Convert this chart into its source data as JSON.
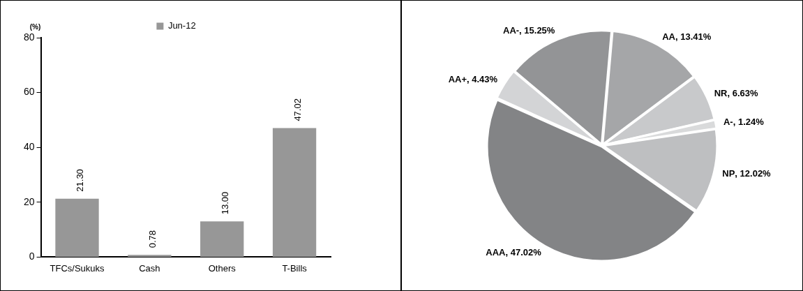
{
  "chart_data": [
    {
      "type": "bar",
      "ylabel": "(%)",
      "categories": [
        "TFCs/Sukuks",
        "Cash",
        "Others",
        "T-Bills"
      ],
      "series": [
        {
          "name": "Jun-12",
          "color": "#979797",
          "values": [
            21.3,
            0.78,
            13.0,
            47.02
          ],
          "value_labels": [
            "21.30",
            "0.78",
            "13.00",
            "47.02"
          ]
        }
      ],
      "ylim": [
        0,
        80
      ],
      "yticks": [
        0,
        20,
        40,
        60,
        80
      ],
      "grid": false,
      "legend": "top"
    },
    {
      "type": "pie",
      "categories": [
        "AA",
        "NR",
        "A-",
        "NP",
        "AAA",
        "AA+",
        "AA-"
      ],
      "values": [
        13.41,
        6.63,
        1.24,
        12.02,
        47.02,
        4.43,
        15.25
      ],
      "colors": [
        "#a5a6a8",
        "#c8c9cb",
        "#d9dadb",
        "#bebfc1",
        "#838486",
        "#d3d4d6",
        "#939496"
      ],
      "value_labels": [
        ", 13.41%",
        ", 6.63%",
        ", 1.24%",
        ", 12.02%",
        ", 47.02%",
        ", 4.43%",
        ", 15.25%"
      ]
    }
  ]
}
